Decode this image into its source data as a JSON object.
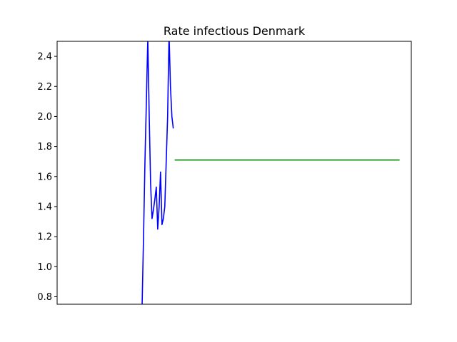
{
  "chart_data": {
    "type": "line",
    "title": "Rate infectious Denmark",
    "xlabel": "",
    "ylabel": "",
    "xlim": [
      0,
      100
    ],
    "ylim": [
      0.75,
      2.5
    ],
    "x_ticks_visible": false,
    "y_ticks": [
      0.8,
      1.0,
      1.2,
      1.4,
      1.6,
      1.8,
      2.0,
      2.2,
      2.4
    ],
    "y_tick_labels": [
      "0.8",
      "1.0",
      "1.2",
      "1.4",
      "1.6",
      "1.8",
      "2.0",
      "2.2",
      "2.4"
    ],
    "grid": false,
    "series": [
      {
        "color": "#0000ff",
        "x": [
          24.0,
          24.4,
          24.8,
          25.2,
          25.6,
          26.0,
          26.4,
          26.8,
          27.2,
          27.6,
          28.0,
          28.4,
          28.8,
          29.2,
          29.6,
          30.0,
          30.4,
          30.8,
          31.2,
          31.6,
          32.0,
          32.4,
          32.8
        ],
        "y": [
          0.75,
          1.2,
          1.7,
          2.1,
          2.52,
          2.0,
          1.55,
          1.32,
          1.38,
          1.45,
          1.53,
          1.25,
          1.4,
          1.63,
          1.28,
          1.32,
          1.4,
          1.7,
          2.0,
          2.55,
          2.2,
          2.0,
          1.92
        ]
      },
      {
        "color": "#008000",
        "x": [
          33.2,
          96.7
        ],
        "y": [
          1.71,
          1.71
        ]
      }
    ]
  }
}
